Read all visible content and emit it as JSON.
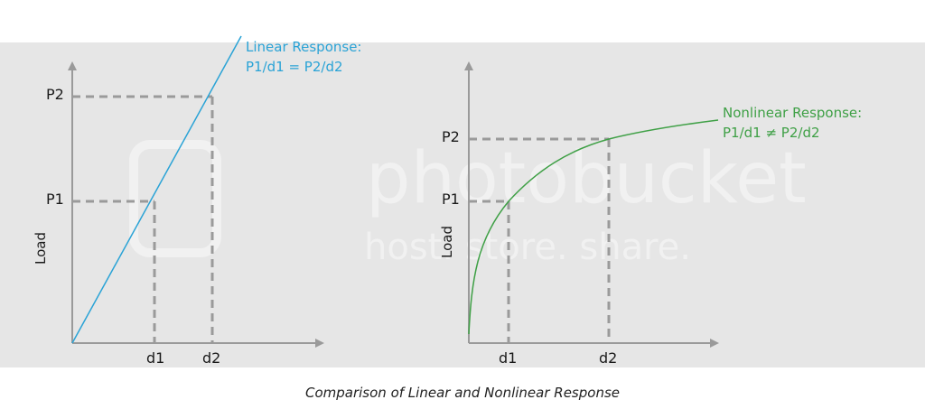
{
  "left_chart": {
    "ylabel": "Load",
    "y_ticks": [
      "P1",
      "P2"
    ],
    "x_ticks": [
      "d1",
      "d2"
    ],
    "annotation_line1": "Linear Response:",
    "annotation_line2": "P1/d1 = P2/d2",
    "line_color": "#2aa3d6"
  },
  "right_chart": {
    "ylabel": "Load",
    "y_ticks": [
      "P1",
      "P2"
    ],
    "x_ticks": [
      "d1",
      "d2"
    ],
    "annotation_line1": "Nonlinear Response:",
    "annotation_line2": "P1/d1 ≠ P2/d2",
    "line_color": "#3fa046"
  },
  "caption": "Comparison  of  Linear and Nonlinear  Response",
  "watermark": {
    "line1": "photobucket",
    "line2": "host. store. share."
  },
  "colors": {
    "panel_background": "#e6e6e6",
    "axis": "#9a9a9a",
    "guide_dashes": "#9a9a9a"
  }
}
